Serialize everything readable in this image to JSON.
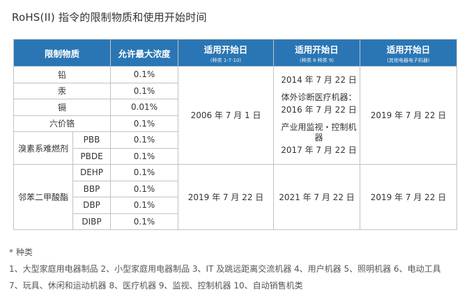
{
  "title": "RoHS(II) 指令的限制物质和使用开始时间",
  "header": {
    "substance": "限制物质",
    "max": "允许最大浓度",
    "date1": "适用开始日",
    "date1_sub": "(种类 1-7·10)",
    "date2": "适用开始日",
    "date2_sub": "(种类 8·种类 9)",
    "date3": "适用开始日",
    "date3_sub": "(其他电器电子机器)"
  },
  "rows": {
    "lead": "铅",
    "lead_v": "0.1%",
    "mercury": "汞",
    "mercury_v": "0.1%",
    "cadmium": "镉",
    "cadmium_v": "0.01%",
    "cr6": "六价铬",
    "cr6_v": "0.1%",
    "bfr_group": "溴素系难燃剂",
    "pbb": "PBB",
    "pbb_v": "0.1%",
    "pbde": "PBDE",
    "pbde_v": "0.1%",
    "phth_group": "邻苯二甲酸酯",
    "dehp": "DEHP",
    "dehp_v": "0.1%",
    "bbp": "BBP",
    "bbp_v": "0.1%",
    "dbp": "DBP",
    "dbp_v": "0.1%",
    "dibp": "DIBP",
    "dibp_v": "0.1%"
  },
  "dates": {
    "g1_d1": "2006 年 7 月 1 日",
    "g1_d2_a": "2014 年 7 月 22 日",
    "g1_d2_b": "体外诊断医疗机器：",
    "g1_d2_c": "2016 年 7 月 22 日",
    "g1_d2_d": "产业用监视・控制机器",
    "g1_d2_e": "2017 年 7 月 22 日",
    "g1_d3": "2019 年 7 月 22 日",
    "g2_d1": "2019 年 7 月 22 日",
    "g2_d2": "2021 年 7 月 22 日",
    "g2_d3": "2019 年 7 月 22 日"
  },
  "notes": {
    "n1": "* 种类",
    "n2": "1、大型家庭用电器制品   2、小型家庭用电器制品   3、IT 及跳远距离交流机器   4、用户机器   5、照明机器   6、电动工具",
    "n3": "7、玩具、休闲和运动机器   8、医疗机器   9、监视、控制机器   10、自动销售机类"
  }
}
